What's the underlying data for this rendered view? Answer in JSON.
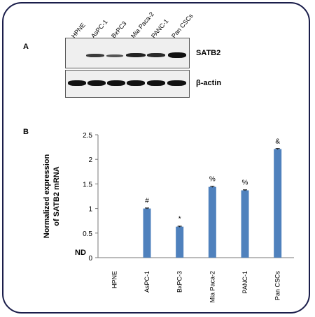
{
  "panel_a": {
    "label": "A",
    "lanes": [
      "HPNE",
      "AsPC-1",
      "BxPC3",
      "Mia Paca-2",
      "PANC-1",
      "Pan CSCs"
    ],
    "blots": [
      "SATB2",
      "β-actin"
    ]
  },
  "panel_b": {
    "label": "B"
  },
  "chart_data": {
    "type": "bar",
    "categories": [
      "HPNE",
      "AsPC-1",
      "BxPC-3",
      "Mia Paca-2",
      "PANC-1",
      "Pan CSCs"
    ],
    "values": [
      null,
      1.0,
      0.63,
      1.44,
      1.37,
      2.21
    ],
    "errors": [
      0,
      0.01,
      0.01,
      0.01,
      0.01,
      0.01
    ],
    "annotations": [
      "ND",
      "#",
      "*",
      "%",
      "%",
      "&"
    ],
    "ylabel": "Normalized expression\nof SATB2 mRNA",
    "ylim": [
      0,
      2.5
    ],
    "yticks": [
      "0",
      "0.5",
      "1",
      "1.5",
      "2",
      "2.5"
    ],
    "bar_color": "#4f81bd",
    "grid": false
  }
}
